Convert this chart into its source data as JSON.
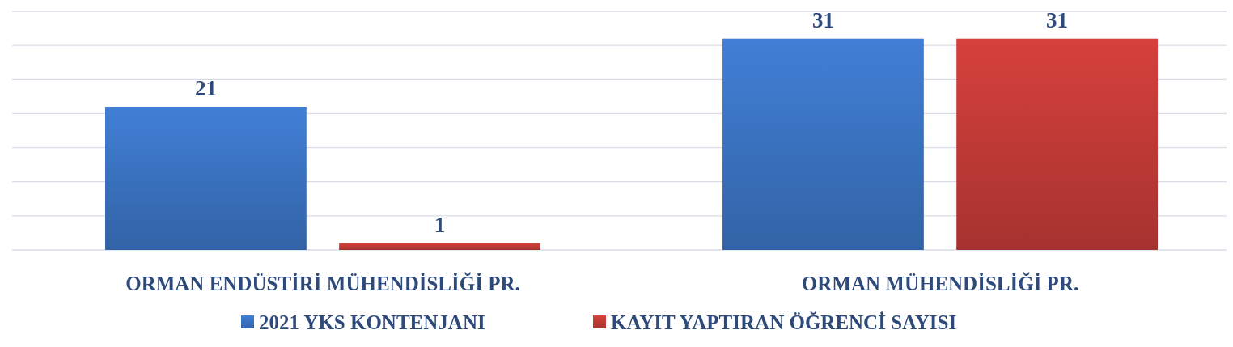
{
  "chart_data": {
    "type": "bar",
    "categories": [
      "ORMAN ENDÜSTİRİ MÜHENDİSLİĞİ PR.",
      "ORMAN MÜHENDİSLİĞİ PR."
    ],
    "series": [
      {
        "name": "2021 YKS KONTENJANI",
        "color": "#3a72c0",
        "values": [
          21,
          31
        ]
      },
      {
        "name": "KAYIT YAPTIRAN ÖĞRENCİ SAYISI",
        "color": "#c03a36",
        "values": [
          1,
          31
        ]
      }
    ],
    "ylim": [
      0,
      35
    ],
    "yticks": [
      {
        "value": 0,
        "label": null
      },
      {
        "value": 5,
        "label": null
      },
      {
        "value": 10,
        "label": null
      },
      {
        "value": 15,
        "label": null
      },
      {
        "value": 20,
        "label": null
      },
      {
        "value": 25,
        "label": null
      },
      {
        "value": 30,
        "label": null
      },
      {
        "value": 35,
        "label": null
      }
    ],
    "grid": "y",
    "tick_labels": "x",
    "data_labels": true,
    "legend": "bottom"
  }
}
